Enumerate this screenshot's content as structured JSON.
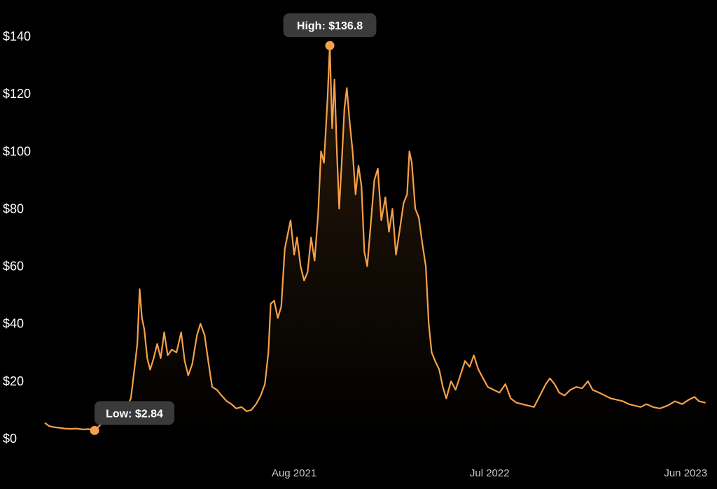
{
  "chart_data": {
    "type": "area",
    "title": "",
    "xlabel": "",
    "ylabel": "",
    "ylim": [
      0,
      140
    ],
    "grid": false,
    "legend": "none",
    "colors": {
      "line": "#f5a04a",
      "fill_top": "#2a1a0a",
      "fill_bottom": "#000000",
      "callout_bg": "#3a3a3a",
      "background": "#000000"
    },
    "y_ticks": [
      {
        "value": 0,
        "label": "$0"
      },
      {
        "value": 20,
        "label": "$20"
      },
      {
        "value": 40,
        "label": "$40"
      },
      {
        "value": 60,
        "label": "$60"
      },
      {
        "value": 80,
        "label": "$80"
      },
      {
        "value": 100,
        "label": "$100"
      },
      {
        "value": 120,
        "label": "$120"
      },
      {
        "value": 140,
        "label": "$140"
      }
    ],
    "x_ticks": [
      {
        "date": "2021-08-01",
        "label": "Aug 2021"
      },
      {
        "date": "2022-07-01",
        "label": "Jul 2022"
      },
      {
        "date": "2023-06-01",
        "label": "Jun 2023"
      }
    ],
    "x_range": [
      "2020-06-01",
      "2023-07-15"
    ],
    "series": [
      {
        "points": [
          [
            "2020-06-01",
            5.5
          ],
          [
            "2020-06-08",
            4.4
          ],
          [
            "2020-06-16",
            4.0
          ],
          [
            "2020-06-25",
            3.8
          ],
          [
            "2020-07-05",
            3.5
          ],
          [
            "2020-07-15",
            3.4
          ],
          [
            "2020-07-25",
            3.5
          ],
          [
            "2020-08-05",
            3.2
          ],
          [
            "2020-08-15",
            3.3
          ],
          [
            "2020-08-25",
            2.84
          ],
          [
            "2020-09-05",
            5.0
          ],
          [
            "2020-09-12",
            7.5
          ],
          [
            "2020-09-18",
            6.5
          ],
          [
            "2020-09-25",
            10.5
          ],
          [
            "2020-10-02",
            12.5
          ],
          [
            "2020-10-08",
            11.0
          ],
          [
            "2020-10-14",
            12.0
          ],
          [
            "2020-10-20",
            11.5
          ],
          [
            "2020-10-26",
            14.0
          ],
          [
            "2020-11-01",
            24.0
          ],
          [
            "2020-11-06",
            33.0
          ],
          [
            "2020-11-10",
            52.0
          ],
          [
            "2020-11-14",
            42.0
          ],
          [
            "2020-11-18",
            38.0
          ],
          [
            "2020-11-23",
            28.0
          ],
          [
            "2020-11-28",
            24.0
          ],
          [
            "2020-12-04",
            28.0
          ],
          [
            "2020-12-10",
            33.0
          ],
          [
            "2020-12-16",
            28.0
          ],
          [
            "2020-12-22",
            37.0
          ],
          [
            "2020-12-28",
            29.0
          ],
          [
            "2021-01-04",
            31.0
          ],
          [
            "2021-01-12",
            30.0
          ],
          [
            "2021-01-20",
            37.0
          ],
          [
            "2021-01-26",
            27.0
          ],
          [
            "2021-02-01",
            22.0
          ],
          [
            "2021-02-08",
            26.0
          ],
          [
            "2021-02-16",
            36.0
          ],
          [
            "2021-02-22",
            40.0
          ],
          [
            "2021-03-01",
            36.0
          ],
          [
            "2021-03-08",
            26.0
          ],
          [
            "2021-03-14",
            18.0
          ],
          [
            "2021-03-22",
            17.0
          ],
          [
            "2021-03-30",
            15.0
          ],
          [
            "2021-04-08",
            13.0
          ],
          [
            "2021-04-16",
            12.0
          ],
          [
            "2021-04-24",
            10.5
          ],
          [
            "2021-05-03",
            11.0
          ],
          [
            "2021-05-12",
            9.5
          ],
          [
            "2021-05-20",
            10.0
          ],
          [
            "2021-05-28",
            12.0
          ],
          [
            "2021-06-05",
            15.0
          ],
          [
            "2021-06-12",
            19.0
          ],
          [
            "2021-06-18",
            30.0
          ],
          [
            "2021-06-22",
            47.0
          ],
          [
            "2021-06-28",
            48.0
          ],
          [
            "2021-07-04",
            42.0
          ],
          [
            "2021-07-10",
            46.0
          ],
          [
            "2021-07-16",
            66.0
          ],
          [
            "2021-07-20",
            70.0
          ],
          [
            "2021-07-26",
            76.0
          ],
          [
            "2021-08-01",
            64.0
          ],
          [
            "2021-08-06",
            70.0
          ],
          [
            "2021-08-12",
            60.0
          ],
          [
            "2021-08-18",
            55.0
          ],
          [
            "2021-08-24",
            58.0
          ],
          [
            "2021-08-30",
            70.0
          ],
          [
            "2021-09-05",
            62.0
          ],
          [
            "2021-09-11",
            78.0
          ],
          [
            "2021-09-16",
            100.0
          ],
          [
            "2021-09-21",
            96.0
          ],
          [
            "2021-09-27",
            118.0
          ],
          [
            "2021-10-01",
            136.8
          ],
          [
            "2021-10-05",
            108.0
          ],
          [
            "2021-10-09",
            125.0
          ],
          [
            "2021-10-13",
            100.0
          ],
          [
            "2021-10-17",
            80.0
          ],
          [
            "2021-10-21",
            95.0
          ],
          [
            "2021-10-26",
            115.0
          ],
          [
            "2021-10-30",
            122.0
          ],
          [
            "2021-11-04",
            110.0
          ],
          [
            "2021-11-09",
            100.0
          ],
          [
            "2021-11-14",
            85.0
          ],
          [
            "2021-11-19",
            95.0
          ],
          [
            "2021-11-24",
            88.0
          ],
          [
            "2021-11-29",
            65.0
          ],
          [
            "2021-12-04",
            60.0
          ],
          [
            "2021-12-10",
            75.0
          ],
          [
            "2021-12-16",
            90.0
          ],
          [
            "2021-12-22",
            94.0
          ],
          [
            "2021-12-28",
            76.0
          ],
          [
            "2022-01-04",
            84.0
          ],
          [
            "2022-01-10",
            72.0
          ],
          [
            "2022-01-16",
            80.0
          ],
          [
            "2022-01-22",
            64.0
          ],
          [
            "2022-01-28",
            72.0
          ],
          [
            "2022-02-04",
            82.0
          ],
          [
            "2022-02-10",
            85.0
          ],
          [
            "2022-02-14",
            100.0
          ],
          [
            "2022-02-18",
            96.0
          ],
          [
            "2022-02-24",
            80.0
          ],
          [
            "2022-03-02",
            77.0
          ],
          [
            "2022-03-08",
            68.0
          ],
          [
            "2022-03-14",
            60.0
          ],
          [
            "2022-03-19",
            40.0
          ],
          [
            "2022-03-24",
            30.0
          ],
          [
            "2022-03-30",
            27.0
          ],
          [
            "2022-04-06",
            24.0
          ],
          [
            "2022-04-12",
            18.0
          ],
          [
            "2022-04-18",
            14.0
          ],
          [
            "2022-04-26",
            20.0
          ],
          [
            "2022-05-04",
            17.0
          ],
          [
            "2022-05-12",
            22.0
          ],
          [
            "2022-05-20",
            27.0
          ],
          [
            "2022-05-28",
            25.0
          ],
          [
            "2022-06-04",
            29.0
          ],
          [
            "2022-06-12",
            24.0
          ],
          [
            "2022-06-20",
            21.0
          ],
          [
            "2022-06-28",
            18.0
          ],
          [
            "2022-07-08",
            17.0
          ],
          [
            "2022-07-18",
            16.0
          ],
          [
            "2022-07-28",
            19.0
          ],
          [
            "2022-08-06",
            14.0
          ],
          [
            "2022-08-16",
            12.5
          ],
          [
            "2022-08-26",
            12.0
          ],
          [
            "2022-09-05",
            11.5
          ],
          [
            "2022-09-15",
            11.0
          ],
          [
            "2022-09-25",
            15.0
          ],
          [
            "2022-10-05",
            19.0
          ],
          [
            "2022-10-12",
            21.0
          ],
          [
            "2022-10-20",
            19.0
          ],
          [
            "2022-10-28",
            16.0
          ],
          [
            "2022-11-06",
            15.0
          ],
          [
            "2022-11-16",
            17.0
          ],
          [
            "2022-11-26",
            18.0
          ],
          [
            "2022-12-06",
            17.5
          ],
          [
            "2022-12-16",
            20.0
          ],
          [
            "2022-12-24",
            17.0
          ],
          [
            "2023-01-04",
            16.0
          ],
          [
            "2023-01-14",
            15.0
          ],
          [
            "2023-01-24",
            14.0
          ],
          [
            "2023-02-04",
            13.5
          ],
          [
            "2023-02-14",
            13.0
          ],
          [
            "2023-02-24",
            12.0
          ],
          [
            "2023-03-06",
            11.5
          ],
          [
            "2023-03-16",
            11.0
          ],
          [
            "2023-03-26",
            12.0
          ],
          [
            "2023-04-06",
            11.0
          ],
          [
            "2023-04-18",
            10.5
          ],
          [
            "2023-05-01",
            11.5
          ],
          [
            "2023-05-14",
            13.0
          ],
          [
            "2023-05-26",
            12.0
          ],
          [
            "2023-06-06",
            13.5
          ],
          [
            "2023-06-16",
            14.5
          ],
          [
            "2023-06-24",
            13.0
          ],
          [
            "2023-07-05",
            12.5
          ]
        ]
      }
    ],
    "annotations": [
      {
        "label": "High: $136.8",
        "date": "2021-10-01",
        "value": 136.8,
        "kind": "high"
      },
      {
        "label": "Low: $2.84",
        "date": "2020-08-25",
        "value": 2.84,
        "kind": "low"
      }
    ]
  }
}
